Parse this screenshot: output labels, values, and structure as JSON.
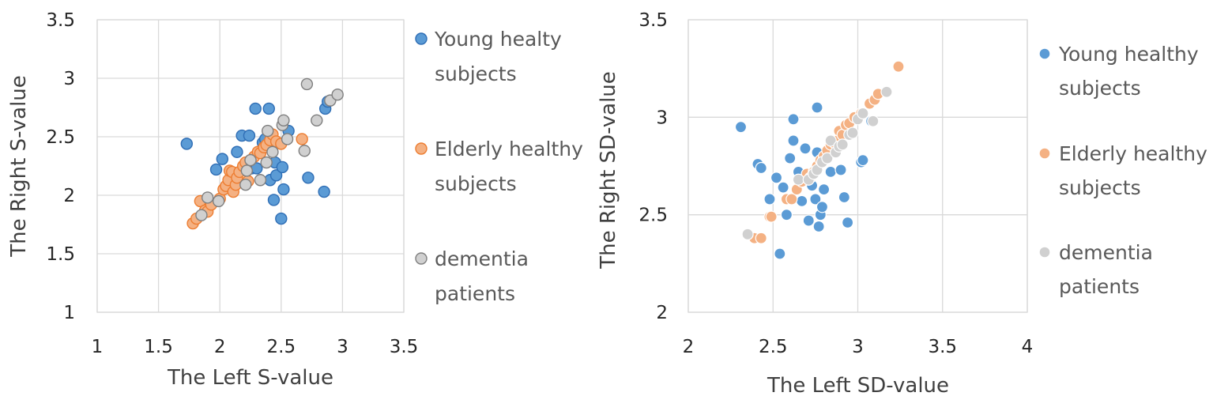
{
  "colors": {
    "young": "#5b9bd5",
    "young_edge": "#2f6eb5",
    "elderly": "#f4b183",
    "elderly_edge": "#ed7d31",
    "dementia": "#d0d0d0",
    "dementia_edge": "#7f7f7f"
  },
  "chart_data": [
    {
      "type": "scatter",
      "xlabel": "The Left S-value",
      "ylabel": "The Right S-value",
      "xlim": [
        1,
        3.5
      ],
      "ylim": [
        1,
        3.5
      ],
      "xticks": [
        "1",
        "1.5",
        "2",
        "2.5",
        "3",
        "3.5"
      ],
      "yticks": [
        "1",
        "1.5",
        "2",
        "2.5",
        "3",
        "3.5"
      ],
      "marker_edge": true,
      "legend": [
        {
          "key": "young",
          "lines": [
            "Young healty",
            "subjects"
          ]
        },
        {
          "key": "elderly",
          "lines": [
            "Elderly healthy",
            "subjects"
          ]
        },
        {
          "key": "dementia",
          "lines": [
            "dementia",
            "patients"
          ]
        }
      ],
      "series": [
        {
          "key": "young",
          "name": "Young healty subjects",
          "points": [
            [
              1.73,
              2.44
            ],
            [
              1.97,
              2.22
            ],
            [
              2.02,
              2.31
            ],
            [
              2.14,
              2.37
            ],
            [
              2.18,
              2.51
            ],
            [
              2.24,
              2.51
            ],
            [
              2.26,
              2.23
            ],
            [
              2.29,
              2.74
            ],
            [
              2.3,
              2.23
            ],
            [
              2.35,
              2.45
            ],
            [
              2.37,
              2.48
            ],
            [
              2.4,
              2.74
            ],
            [
              2.41,
              2.13
            ],
            [
              2.43,
              2.46
            ],
            [
              2.44,
              1.96
            ],
            [
              2.45,
              2.28
            ],
            [
              2.46,
              2.17
            ],
            [
              2.5,
              1.8
            ],
            [
              2.51,
              2.24
            ],
            [
              2.52,
              2.05
            ],
            [
              2.56,
              2.55
            ],
            [
              2.72,
              2.15
            ],
            [
              2.85,
              2.03
            ],
            [
              2.86,
              2.74
            ],
            [
              2.88,
              2.8
            ]
          ]
        },
        {
          "key": "elderly",
          "name": "Elderly healthy subjects",
          "points": [
            [
              1.78,
              1.76
            ],
            [
              1.81,
              1.8
            ],
            [
              1.84,
              1.95
            ],
            [
              1.88,
              1.87
            ],
            [
              1.9,
              1.86
            ],
            [
              1.93,
              1.92
            ],
            [
              2.0,
              1.97
            ],
            [
              2.03,
              2.05
            ],
            [
              2.05,
              2.08
            ],
            [
              2.07,
              2.13
            ],
            [
              2.08,
              2.21
            ],
            [
              2.1,
              2.2
            ],
            [
              2.11,
              2.03
            ],
            [
              2.13,
              2.09
            ],
            [
              2.14,
              2.15
            ],
            [
              2.16,
              2.2
            ],
            [
              2.19,
              2.25
            ],
            [
              2.21,
              2.28
            ],
            [
              2.23,
              2.12
            ],
            [
              2.25,
              2.3
            ],
            [
              2.28,
              2.33
            ],
            [
              2.31,
              2.37
            ],
            [
              2.33,
              2.36
            ],
            [
              2.36,
              2.41
            ],
            [
              2.38,
              2.43
            ],
            [
              2.41,
              2.47
            ],
            [
              2.43,
              2.52
            ],
            [
              2.46,
              2.46
            ],
            [
              2.5,
              2.44
            ],
            [
              2.67,
              2.48
            ]
          ]
        },
        {
          "key": "dementia",
          "name": "dementia patients",
          "points": [
            [
              1.85,
              1.83
            ],
            [
              1.9,
              1.98
            ],
            [
              1.99,
              1.95
            ],
            [
              2.21,
              2.09
            ],
            [
              2.22,
              2.21
            ],
            [
              2.25,
              2.3
            ],
            [
              2.33,
              2.13
            ],
            [
              2.38,
              2.28
            ],
            [
              2.39,
              2.55
            ],
            [
              2.43,
              2.37
            ],
            [
              2.51,
              2.6
            ],
            [
              2.52,
              2.64
            ],
            [
              2.55,
              2.48
            ],
            [
              2.69,
              2.38
            ],
            [
              2.71,
              2.95
            ],
            [
              2.79,
              2.64
            ],
            [
              2.9,
              2.81
            ],
            [
              2.96,
              2.86
            ]
          ]
        }
      ]
    },
    {
      "type": "scatter",
      "xlabel": "The Left SD-value",
      "ylabel": "The Right SD-value",
      "xlim": [
        2,
        4
      ],
      "ylim": [
        2,
        3.5
      ],
      "xticks": [
        "2",
        "2.5",
        "3",
        "3.5",
        "4"
      ],
      "yticks": [
        "2",
        "2.5",
        "3",
        "3.5"
      ],
      "marker_edge": false,
      "legend": [
        {
          "key": "young",
          "lines": [
            "Young healthy",
            "subjects"
          ]
        },
        {
          "key": "elderly",
          "lines": [
            "Elderly healthy",
            "subjects"
          ]
        },
        {
          "key": "dementia",
          "lines": [
            "dementia",
            "patients"
          ]
        }
      ],
      "series": [
        {
          "key": "young",
          "name": "Young healthy subjects",
          "points": [
            [
              2.31,
              2.95
            ],
            [
              2.41,
              2.76
            ],
            [
              2.43,
              2.74
            ],
            [
              2.48,
              2.58
            ],
            [
              2.52,
              2.69
            ],
            [
              2.54,
              2.3
            ],
            [
              2.56,
              2.64
            ],
            [
              2.58,
              2.5
            ],
            [
              2.6,
              2.79
            ],
            [
              2.62,
              2.99
            ],
            [
              2.62,
              2.88
            ],
            [
              2.65,
              2.72
            ],
            [
              2.67,
              2.57
            ],
            [
              2.69,
              2.84
            ],
            [
              2.71,
              2.47
            ],
            [
              2.73,
              2.65
            ],
            [
              2.75,
              2.58
            ],
            [
              2.76,
              3.05
            ],
            [
              2.76,
              2.82
            ],
            [
              2.77,
              2.44
            ],
            [
              2.78,
              2.5
            ],
            [
              2.79,
              2.54
            ],
            [
              2.8,
              2.63
            ],
            [
              2.84,
              2.72
            ],
            [
              2.9,
              2.73
            ],
            [
              2.92,
              2.59
            ],
            [
              2.94,
              2.46
            ],
            [
              3.02,
              2.77
            ],
            [
              3.03,
              2.78
            ],
            [
              3.08,
              2.98
            ]
          ]
        },
        {
          "key": "elderly",
          "name": "Elderly healthy subjects",
          "points": [
            [
              2.39,
              2.38
            ],
            [
              2.43,
              2.38
            ],
            [
              2.48,
              2.49
            ],
            [
              2.49,
              2.49
            ],
            [
              2.58,
              2.58
            ],
            [
              2.61,
              2.58
            ],
            [
              2.64,
              2.63
            ],
            [
              2.67,
              2.67
            ],
            [
              2.7,
              2.71
            ],
            [
              2.72,
              2.69
            ],
            [
              2.74,
              2.72
            ],
            [
              2.76,
              2.75
            ],
            [
              2.78,
              2.78
            ],
            [
              2.8,
              2.8
            ],
            [
              2.82,
              2.83
            ],
            [
              2.84,
              2.86
            ],
            [
              2.86,
              2.87
            ],
            [
              2.88,
              2.88
            ],
            [
              2.89,
              2.93
            ],
            [
              2.91,
              2.91
            ],
            [
              2.93,
              2.96
            ],
            [
              2.95,
              2.97
            ],
            [
              2.98,
              3.0
            ],
            [
              3.02,
              3.02
            ],
            [
              3.07,
              3.07
            ],
            [
              3.1,
              3.09
            ],
            [
              3.12,
              3.12
            ],
            [
              3.24,
              3.26
            ]
          ]
        },
        {
          "key": "dementia",
          "name": "dementia patients",
          "points": [
            [
              2.35,
              2.4
            ],
            [
              2.65,
              2.68
            ],
            [
              2.71,
              2.68
            ],
            [
              2.74,
              2.71
            ],
            [
              2.76,
              2.73
            ],
            [
              2.79,
              2.77
            ],
            [
              2.82,
              2.79
            ],
            [
              2.84,
              2.88
            ],
            [
              2.87,
              2.82
            ],
            [
              2.89,
              2.85
            ],
            [
              2.91,
              2.86
            ],
            [
              2.95,
              2.91
            ],
            [
              2.97,
              2.92
            ],
            [
              3.0,
              2.99
            ],
            [
              3.03,
              3.02
            ],
            [
              3.09,
              2.98
            ],
            [
              3.17,
              3.13
            ]
          ]
        }
      ]
    }
  ]
}
